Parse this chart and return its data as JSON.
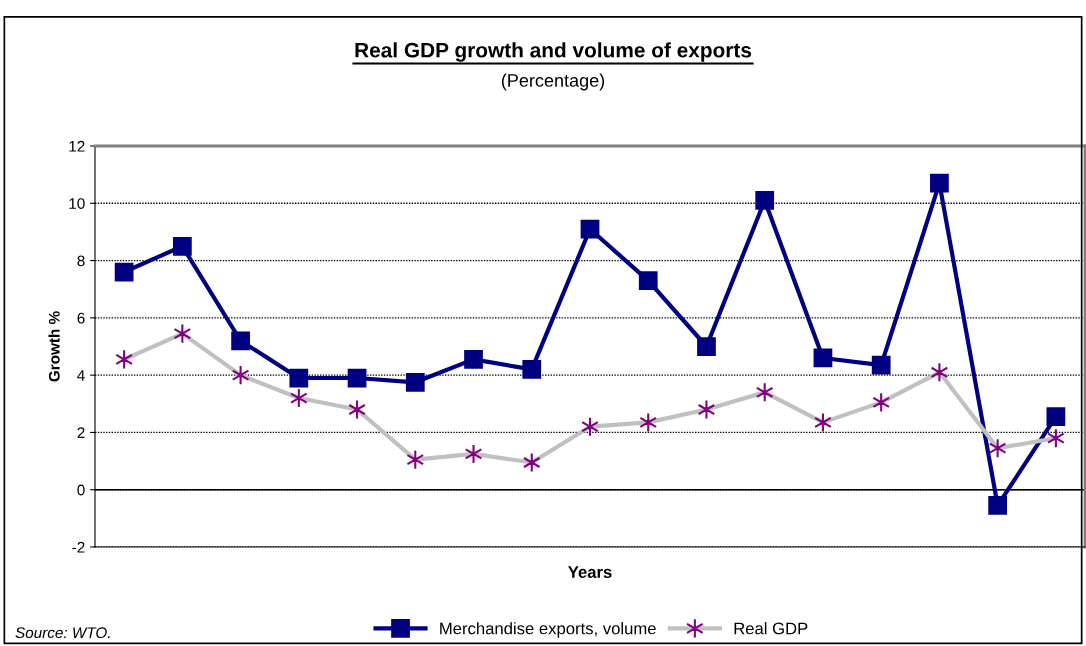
{
  "chart_data": {
    "type": "line",
    "title": "Real GDP growth and volume of exports",
    "subtitle": "(Percentage)",
    "xlabel": "Years",
    "ylabel": "Growth %",
    "categories": [
      null,
      null,
      null,
      null,
      null,
      null,
      null,
      null,
      null,
      null,
      null,
      null,
      null,
      null,
      null,
      null,
      null
    ],
    "series": [
      {
        "name": "Merchandise exports, volume",
        "color": "#000080",
        "marker": "square",
        "values": [
          7.6,
          8.5,
          5.2,
          3.9,
          3.9,
          3.75,
          4.55,
          4.2,
          9.1,
          7.3,
          5.0,
          10.1,
          4.6,
          4.35,
          10.7,
          -0.55,
          2.55
        ]
      },
      {
        "name": "Real GDP",
        "color": "#c0c0c0",
        "marker": "cross",
        "values": [
          4.55,
          5.45,
          4.0,
          3.2,
          2.8,
          1.05,
          1.25,
          0.95,
          2.2,
          2.35,
          2.8,
          3.4,
          2.35,
          3.05,
          4.1,
          1.45,
          1.8
        ]
      }
    ],
    "ylim": [
      -2,
      12
    ],
    "yticks": [
      -2,
      0,
      2,
      4,
      6,
      8,
      10,
      12
    ],
    "grid": "y",
    "legend": "bottom",
    "annotations": [
      "Source: WTO."
    ]
  }
}
